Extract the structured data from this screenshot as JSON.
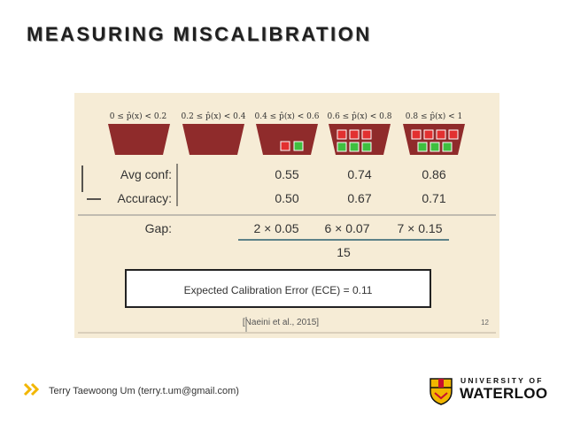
{
  "slide": {
    "title": "MEASURING MISCALIBRATION"
  },
  "figure": {
    "bins": [
      {
        "label": "0 ≤ p̂(x) < 0.2",
        "red_marks": 0,
        "green_marks": 0
      },
      {
        "label": "0.2 ≤ p̂(x) < 0.4",
        "red_marks": 0,
        "green_marks": 0
      },
      {
        "label": "0.4 ≤ p̂(x) < 0.6",
        "red_marks": 1,
        "green_marks": 1
      },
      {
        "label": "0.6 ≤ p̂(x) < 0.8",
        "red_marks": 3,
        "green_marks": 3
      },
      {
        "label": "0.8 ≤ p̂(x) < 1",
        "red_marks": 4,
        "green_marks": 3
      }
    ],
    "avg_conf_label": "Avg conf:",
    "accuracy_label": "Accuracy:",
    "avg_conf_values": [
      "0.55",
      "0.74",
      "0.86"
    ],
    "accuracy_values": [
      "0.50",
      "0.67",
      "0.71"
    ],
    "gap_label": "Gap:",
    "gap_terms": [
      "2 × 0.05",
      "6 × 0.07",
      "7 × 0.15"
    ],
    "denominator": "15",
    "ece_text": "Expected Calibration Error (ECE) = 0.11",
    "citation": "[Naeini et al., 2015]",
    "page_number": "12",
    "colors": {
      "bin": "#8f2b2b",
      "red_mark": "#e23030",
      "green_mark": "#3fbf3f",
      "background": "#f6ecd6"
    }
  },
  "footer": {
    "author": "Terry Taewoong Um (terry.t.um@gmail.com)",
    "logo_line1": "UNIVERSITY OF",
    "logo_line2": "WATERLOO"
  }
}
